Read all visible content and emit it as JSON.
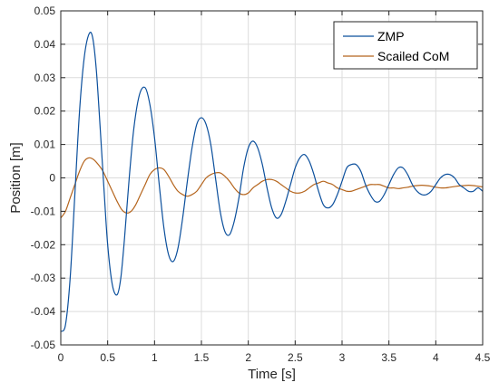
{
  "chart_data": {
    "type": "line",
    "title": "",
    "xlabel": "Time [s]",
    "ylabel": "Position [m]",
    "xlim": [
      0,
      4.5
    ],
    "ylim": [
      -0.05,
      0.05
    ],
    "x_ticks": [
      0,
      0.5,
      1,
      1.5,
      2,
      2.5,
      3,
      3.5,
      4,
      4.5
    ],
    "x_tick_labels": [
      "0",
      "0.5",
      "1",
      "1.5",
      "2",
      "2.5",
      "3",
      "3.5",
      "4",
      "4.5"
    ],
    "y_ticks": [
      -0.05,
      -0.04,
      -0.03,
      -0.02,
      -0.01,
      0,
      0.01,
      0.02,
      0.03,
      0.04,
      0.05
    ],
    "y_tick_labels": [
      "-0.05",
      "-0.04",
      "-0.03",
      "-0.02",
      "-0.01",
      "0",
      "0.01",
      "0.02",
      "0.03",
      "0.04",
      "0.05"
    ],
    "grid": true,
    "legend_position": "top-right",
    "series": [
      {
        "name": "ZMP",
        "color": "#0b4f9c",
        "x": [
          0,
          0.05,
          0.1,
          0.15,
          0.2,
          0.25,
          0.3,
          0.34,
          0.38,
          0.42,
          0.46,
          0.5,
          0.55,
          0.6,
          0.64,
          0.68,
          0.73,
          0.78,
          0.84,
          0.9,
          0.95,
          1.0,
          1.05,
          1.1,
          1.15,
          1.2,
          1.25,
          1.3,
          1.35,
          1.4,
          1.45,
          1.5,
          1.55,
          1.6,
          1.65,
          1.7,
          1.75,
          1.8,
          1.85,
          1.9,
          1.95,
          2.0,
          2.05,
          2.1,
          2.15,
          2.2,
          2.25,
          2.3,
          2.35,
          2.4,
          2.45,
          2.5,
          2.55,
          2.6,
          2.65,
          2.7,
          2.75,
          2.8,
          2.85,
          2.9,
          2.95,
          3.0,
          3.05,
          3.1,
          3.15,
          3.2,
          3.25,
          3.3,
          3.35,
          3.4,
          3.45,
          3.5,
          3.55,
          3.6,
          3.65,
          3.7,
          3.75,
          3.8,
          3.85,
          3.9,
          3.95,
          4.0,
          4.05,
          4.1,
          4.15,
          4.2,
          4.25,
          4.3,
          4.35,
          4.4,
          4.45,
          4.5
        ],
        "y": [
          -0.046,
          -0.044,
          -0.03,
          -0.005,
          0.02,
          0.036,
          0.043,
          0.042,
          0.032,
          0.015,
          -0.003,
          -0.02,
          -0.032,
          -0.035,
          -0.03,
          -0.018,
          0.0,
          0.015,
          0.025,
          0.027,
          0.022,
          0.012,
          -0.002,
          -0.015,
          -0.023,
          -0.025,
          -0.021,
          -0.012,
          -0.001,
          0.009,
          0.016,
          0.018,
          0.016,
          0.01,
          0.0,
          -0.01,
          -0.016,
          -0.017,
          -0.013,
          -0.006,
          0.003,
          0.009,
          0.011,
          0.009,
          0.004,
          -0.003,
          -0.009,
          -0.012,
          -0.011,
          -0.007,
          -0.002,
          0.003,
          0.006,
          0.007,
          0.005,
          0.001,
          -0.004,
          -0.008,
          -0.009,
          -0.008,
          -0.005,
          -0.001,
          0.003,
          0.004,
          0.004,
          0.002,
          -0.002,
          -0.005,
          -0.007,
          -0.007,
          -0.005,
          -0.002,
          0.001,
          0.003,
          0.003,
          0.001,
          -0.002,
          -0.004,
          -0.005,
          -0.005,
          -0.004,
          -0.002,
          0.0,
          0.001,
          0.001,
          0.0,
          -0.002,
          -0.003,
          -0.004,
          -0.004,
          -0.003,
          -0.004
        ]
      },
      {
        "name": "Scailed CoM",
        "color": "#b5651d",
        "x": [
          0,
          0.05,
          0.1,
          0.15,
          0.2,
          0.25,
          0.3,
          0.35,
          0.4,
          0.45,
          0.5,
          0.55,
          0.6,
          0.65,
          0.7,
          0.75,
          0.8,
          0.85,
          0.9,
          0.95,
          1.0,
          1.05,
          1.1,
          1.15,
          1.2,
          1.25,
          1.3,
          1.35,
          1.4,
          1.45,
          1.5,
          1.55,
          1.6,
          1.65,
          1.7,
          1.75,
          1.8,
          1.85,
          1.9,
          1.95,
          2.0,
          2.05,
          2.1,
          2.15,
          2.2,
          2.25,
          2.3,
          2.35,
          2.4,
          2.45,
          2.5,
          2.55,
          2.6,
          2.65,
          2.7,
          2.75,
          2.8,
          2.85,
          2.9,
          2.95,
          3.0,
          3.05,
          3.1,
          3.15,
          3.2,
          3.25,
          3.3,
          3.35,
          3.4,
          3.45,
          3.5,
          3.55,
          3.6,
          3.65,
          3.7,
          3.75,
          3.8,
          3.85,
          3.9,
          3.95,
          4.0,
          4.05,
          4.1,
          4.15,
          4.2,
          4.25,
          4.3,
          4.35,
          4.4,
          4.45,
          4.5
        ],
        "y": [
          -0.012,
          -0.01,
          -0.006,
          -0.002,
          0.002,
          0.005,
          0.006,
          0.0055,
          0.004,
          0.002,
          -0.001,
          -0.004,
          -0.007,
          -0.0095,
          -0.0105,
          -0.01,
          -0.008,
          -0.005,
          -0.002,
          0.001,
          0.0025,
          0.003,
          0.0025,
          0.0005,
          -0.002,
          -0.004,
          -0.005,
          -0.0055,
          -0.005,
          -0.004,
          -0.002,
          0.0,
          0.001,
          0.0015,
          0.0015,
          0.0005,
          -0.001,
          -0.003,
          -0.0045,
          -0.005,
          -0.0045,
          -0.003,
          -0.002,
          -0.001,
          -0.0005,
          -0.0005,
          -0.001,
          -0.002,
          -0.003,
          -0.004,
          -0.0045,
          -0.0045,
          -0.004,
          -0.003,
          -0.002,
          -0.0015,
          -0.001,
          -0.0015,
          -0.002,
          -0.003,
          -0.0035,
          -0.004,
          -0.004,
          -0.0035,
          -0.003,
          -0.0025,
          -0.002,
          -0.002,
          -0.002,
          -0.0025,
          -0.003,
          -0.003,
          -0.0032,
          -0.003,
          -0.0028,
          -0.0025,
          -0.0023,
          -0.0022,
          -0.0023,
          -0.0025,
          -0.0028,
          -0.003,
          -0.003,
          -0.0028,
          -0.0026,
          -0.0024,
          -0.0023,
          -0.0022,
          -0.0023,
          -0.0025,
          -0.0027
        ]
      }
    ]
  }
}
